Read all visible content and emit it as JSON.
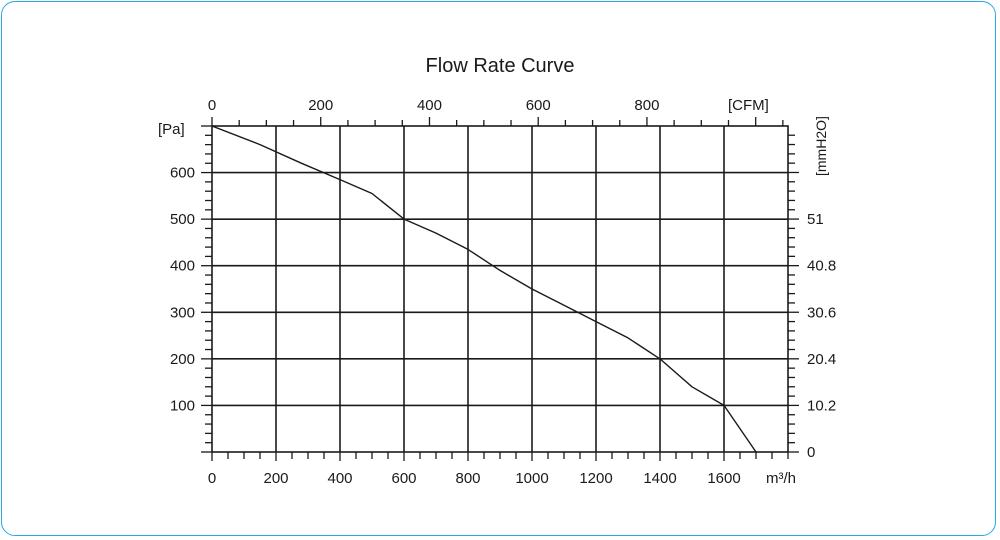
{
  "chart_data": {
    "type": "line",
    "title": "Flow Rate Curve",
    "xlabel": "m³/h",
    "ylabel_left": "[Pa]",
    "xlabel_top": "[CFM]",
    "ylabel_right": "[mmH2O]",
    "xlim": [
      0,
      1800
    ],
    "ylim": [
      0,
      700
    ],
    "x_ticks": [
      "0",
      "200",
      "400",
      "600",
      "800",
      "1000",
      "1200",
      "1400",
      "1600"
    ],
    "x_tick_values": [
      0,
      200,
      400,
      600,
      800,
      1000,
      1200,
      1400,
      1600
    ],
    "y_ticks": [
      "100",
      "200",
      "300",
      "400",
      "500",
      "600"
    ],
    "y_tick_values": [
      100,
      200,
      300,
      400,
      500,
      600
    ],
    "top_ticks": [
      "0",
      "200",
      "400",
      "600",
      "800"
    ],
    "top_tick_values": [
      0,
      339.8,
      679.6,
      1019.4,
      1359.2
    ],
    "right_ticks": [
      "0",
      "10.2",
      "20.4",
      "30.6",
      "40.8",
      "51"
    ],
    "right_tick_values": [
      0,
      100,
      200,
      300,
      400,
      500
    ],
    "grid": true,
    "series": [
      {
        "x": [
          0,
          150,
          280,
          400,
          500,
          600,
          700,
          800,
          900,
          1000,
          1100,
          1200,
          1300,
          1400,
          1500,
          1600,
          1700
        ],
        "y": [
          700,
          660,
          620,
          585,
          555,
          500,
          470,
          435,
          390,
          350,
          315,
          280,
          245,
          200,
          140,
          100,
          0
        ],
        "color": "#1a1a1a"
      }
    ]
  },
  "ui": {
    "frame_color": "#29a9e0",
    "grid_color": "#1a1a1a"
  }
}
